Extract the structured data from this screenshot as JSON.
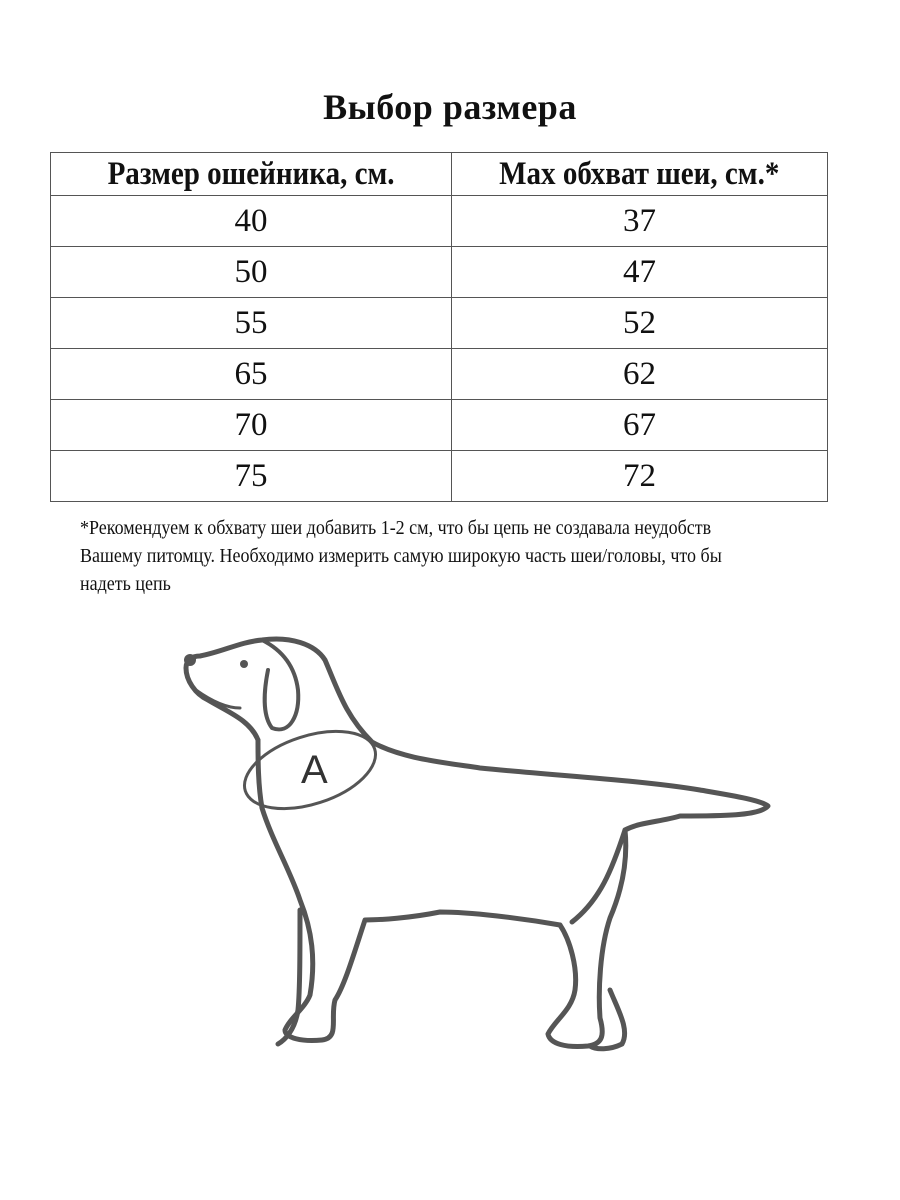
{
  "title": "Выбор размера",
  "table": {
    "headers": [
      "Размер ошейника, см.",
      "Max обхват шеи, см.*"
    ],
    "rows": [
      [
        "40",
        "37"
      ],
      [
        "50",
        "47"
      ],
      [
        "55",
        "52"
      ],
      [
        "65",
        "62"
      ],
      [
        "70",
        "67"
      ],
      [
        "75",
        "72"
      ]
    ]
  },
  "note": {
    "lines": [
      "*Рекомендуем к обхвату шеи добавить 1-2 см, что бы цепь не создавала неудобств",
      "Вашему питомцу. Необходимо измерить самую широкую часть шеи/головы, что бы",
      "надеть цепь"
    ]
  },
  "illustration": {
    "label": "A",
    "icon": "dog-outline-icon"
  }
}
